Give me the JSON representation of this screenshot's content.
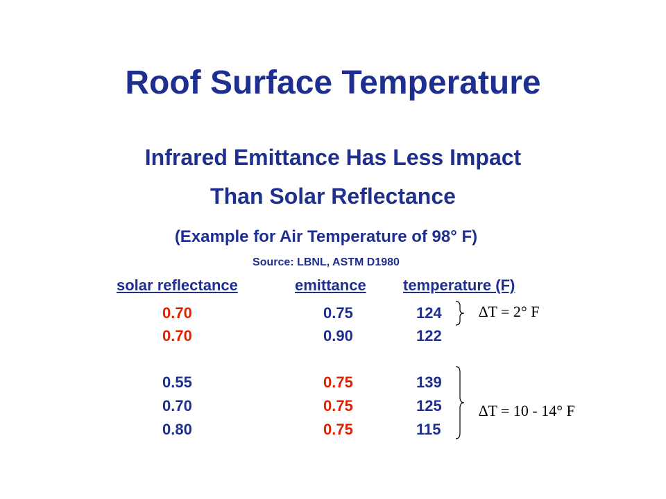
{
  "title": "Roof Surface Temperature",
  "subtitle_line1": "Infrared Emittance Has Less Impact",
  "subtitle_line2": "Than Solar Reflectance",
  "example": "(Example for Air Temperature of 98° F)",
  "source": "Source: LBNL, ASTM D1980",
  "table": {
    "headers": [
      "solar reflectance",
      "emittance",
      "temperature (F)"
    ],
    "rows": [
      {
        "reflectance": "0.70",
        "emittance": "0.75",
        "temperature": "124"
      },
      {
        "reflectance": "0.70",
        "emittance": "0.90",
        "temperature": "122"
      },
      {
        "reflectance": "0.55",
        "emittance": "0.75",
        "temperature": "139"
      },
      {
        "reflectance": "0.70",
        "emittance": "0.75",
        "temperature": "125"
      },
      {
        "reflectance": "0.80",
        "emittance": "0.75",
        "temperature": "115"
      }
    ]
  },
  "annotations": {
    "group1": "∆T = 2° F",
    "group2": "∆T = 10 - 14° F"
  },
  "colors": {
    "text": "#1f2f8f",
    "highlight": "#e02000"
  }
}
